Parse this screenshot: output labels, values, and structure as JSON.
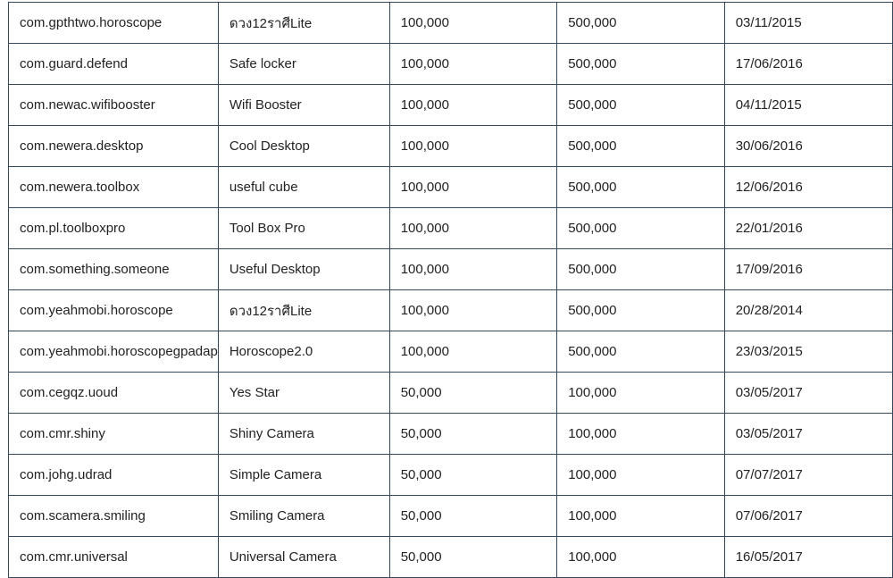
{
  "table": {
    "rows": [
      [
        "com.gpthtwo.horoscope",
        "ดวง12ราศีLite",
        "100,000",
        "500,000",
        "03/11/2015"
      ],
      [
        "com.guard.defend",
        "Safe locker",
        "100,000",
        "500,000",
        "17/06/2016"
      ],
      [
        "com.newac.wifibooster",
        "Wifi Booster",
        "100,000",
        "500,000",
        "04/11/2015"
      ],
      [
        "com.newera.desktop",
        "Cool Desktop",
        "100,000",
        "500,000",
        "30/06/2016"
      ],
      [
        "com.newera.toolbox",
        "useful cube",
        "100,000",
        "500,000",
        "12/06/2016"
      ],
      [
        "com.pl.toolboxpro",
        "Tool Box Pro",
        "100,000",
        "500,000",
        "22/01/2016"
      ],
      [
        "com.something.someone",
        "Useful Desktop",
        "100,000",
        "500,000",
        "17/09/2016"
      ],
      [
        "com.yeahmobi.horoscope",
        "ดวง12ราศีLite",
        "100,000",
        "500,000",
        "20/28/2014"
      ],
      [
        "com.yeahmobi.horoscopegpadap",
        "Horoscope2.0",
        "100,000",
        "500,000",
        "23/03/2015"
      ],
      [
        "com.cegqz.uoud",
        "Yes Star",
        "50,000",
        "100,000",
        "03/05/2017"
      ],
      [
        "com.cmr.shiny",
        "Shiny Camera",
        "50,000",
        "100,000",
        "03/05/2017"
      ],
      [
        "com.johg.udrad",
        "Simple Camera",
        "50,000",
        "100,000",
        "07/07/2017"
      ],
      [
        "com.scamera.smiling",
        "Smiling Camera",
        "50,000",
        "100,000",
        "07/06/2017"
      ],
      [
        "com.cmr.universal",
        "Universal Camera",
        "50,000",
        "100,000",
        "16/05/2017"
      ]
    ]
  }
}
